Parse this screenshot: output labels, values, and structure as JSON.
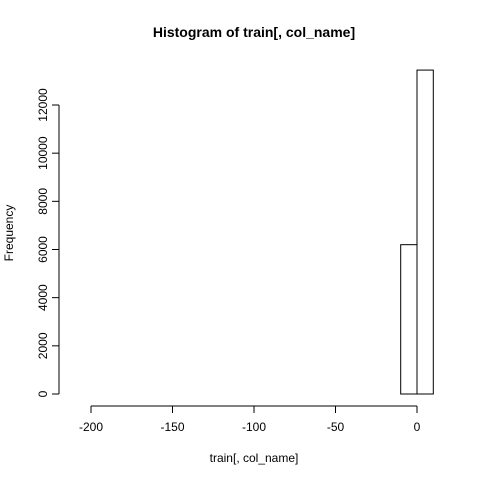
{
  "chart_data": {
    "type": "bar",
    "title": "Histogram of train[, col_name]",
    "xlabel": "train[, col_name]",
    "ylabel": "Frequency",
    "xlim": [
      -210,
      10
    ],
    "ylim": [
      0,
      13500
    ],
    "x_ticks": [
      -200,
      -150,
      -100,
      -50,
      0
    ],
    "y_ticks": [
      0,
      2000,
      4000,
      6000,
      8000,
      10000,
      12000
    ],
    "bin_width": 10,
    "bins": [
      {
        "x0": -210,
        "x1": -200,
        "value": 0
      },
      {
        "x0": -200,
        "x1": -190,
        "value": 0
      },
      {
        "x0": -190,
        "x1": -180,
        "value": 0
      },
      {
        "x0": -180,
        "x1": -170,
        "value": 0
      },
      {
        "x0": -170,
        "x1": -160,
        "value": 0
      },
      {
        "x0": -160,
        "x1": -150,
        "value": 0
      },
      {
        "x0": -150,
        "x1": -140,
        "value": 0
      },
      {
        "x0": -140,
        "x1": -130,
        "value": 0
      },
      {
        "x0": -130,
        "x1": -120,
        "value": 0
      },
      {
        "x0": -120,
        "x1": -110,
        "value": 0
      },
      {
        "x0": -110,
        "x1": -100,
        "value": 0
      },
      {
        "x0": -100,
        "x1": -90,
        "value": 0
      },
      {
        "x0": -90,
        "x1": -80,
        "value": 0
      },
      {
        "x0": -80,
        "x1": -70,
        "value": 0
      },
      {
        "x0": -70,
        "x1": -60,
        "value": 0
      },
      {
        "x0": -60,
        "x1": -50,
        "value": 0
      },
      {
        "x0": -50,
        "x1": -40,
        "value": 0
      },
      {
        "x0": -40,
        "x1": -30,
        "value": 0
      },
      {
        "x0": -30,
        "x1": -20,
        "value": 0
      },
      {
        "x0": -20,
        "x1": -10,
        "value": 0
      },
      {
        "x0": -10,
        "x1": 0,
        "value": 6200
      },
      {
        "x0": 0,
        "x1": 10,
        "value": 13450
      }
    ],
    "grid": false,
    "legend": "none"
  }
}
